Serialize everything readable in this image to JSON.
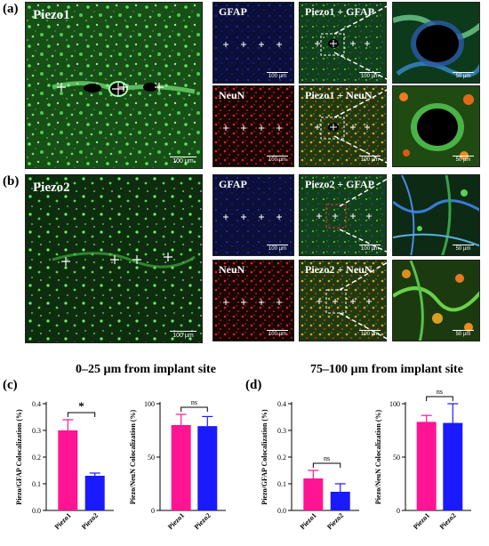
{
  "panels": {
    "a": {
      "letter": "(a)",
      "main": {
        "label": "Piezo1",
        "scale": "100 µm"
      },
      "gfap": {
        "label": "GFAP",
        "scale": "100 µm"
      },
      "neun": {
        "label": "NeuN",
        "scale": "100 µm"
      },
      "merge_gfap": {
        "label": "Piezo1 + GFAP",
        "scale": "100 µm"
      },
      "merge_neun": {
        "label": "Piezo1 + NeuN",
        "scale": "100 µm"
      },
      "zoom_top": {
        "scale": "50 µm"
      },
      "zoom_bottom": {
        "scale": "50 µm"
      }
    },
    "b": {
      "letter": "(b)",
      "main": {
        "label": "Piezo2",
        "scale": "100 µm"
      },
      "gfap": {
        "label": "GFAP",
        "scale": "100 µm"
      },
      "neun": {
        "label": "NeuN",
        "scale": "100 µm"
      },
      "merge_gfap": {
        "label": "Piezo2 + GFAP",
        "scale": "100 µm"
      },
      "merge_neun": {
        "label": "Piezo2 + NeuN",
        "scale": "100 µm"
      },
      "zoom_top": {
        "scale": "50 µm"
      },
      "zoom_bottom": {
        "scale": "50 µm"
      }
    },
    "c": {
      "letter": "(c)",
      "title": "0–25 µm from implant site"
    },
    "d": {
      "letter": "(d)",
      "title": "75–100 µm from implant site"
    }
  },
  "colors": {
    "piezo1": "#ff1493",
    "piezo2": "#1a1aff",
    "green": "#1fa12b",
    "blue": "#1b2aa0",
    "red": "#d21a1a"
  },
  "chart_data": [
    {
      "type": "bar",
      "panel": "c",
      "categories": [
        "Piezo1",
        "Piezo2"
      ],
      "values": [
        0.3,
        0.13
      ],
      "errors": [
        0.04,
        0.01
      ],
      "ylabel": "Piezo/GFAP Colocalization (%)",
      "ylim": [
        0,
        0.4
      ],
      "yticks": [
        "0.0",
        "0.1",
        "0.2",
        "0.3",
        "0.4"
      ],
      "significance": "*"
    },
    {
      "type": "bar",
      "panel": "c",
      "categories": [
        "Piezo1",
        "Piezo2"
      ],
      "values": [
        80,
        79
      ],
      "errors": [
        10,
        9
      ],
      "ylabel": "Piezo/NeuN Colocalization (%)",
      "ylim": [
        0,
        100
      ],
      "yticks": [
        "0",
        "50",
        "100"
      ],
      "significance": "ns"
    },
    {
      "type": "bar",
      "panel": "d",
      "categories": [
        "Piezo1",
        "Piezo2"
      ],
      "values": [
        0.12,
        0.07
      ],
      "errors": [
        0.03,
        0.03
      ],
      "ylabel": "Piezo/GFAP Colocalization (%)",
      "ylim": [
        0,
        0.4
      ],
      "yticks": [
        "0.0",
        "0.1",
        "0.2",
        "0.3",
        "0.4"
      ],
      "significance": "ns"
    },
    {
      "type": "bar",
      "panel": "d",
      "categories": [
        "Piezo1",
        "Piezo2"
      ],
      "values": [
        83,
        82
      ],
      "errors": [
        6,
        18
      ],
      "ylabel": "Piezo/NeuN Colocalization (%)",
      "ylim": [
        0,
        100
      ],
      "yticks": [
        "0",
        "50",
        "100"
      ],
      "significance": "ns"
    }
  ]
}
